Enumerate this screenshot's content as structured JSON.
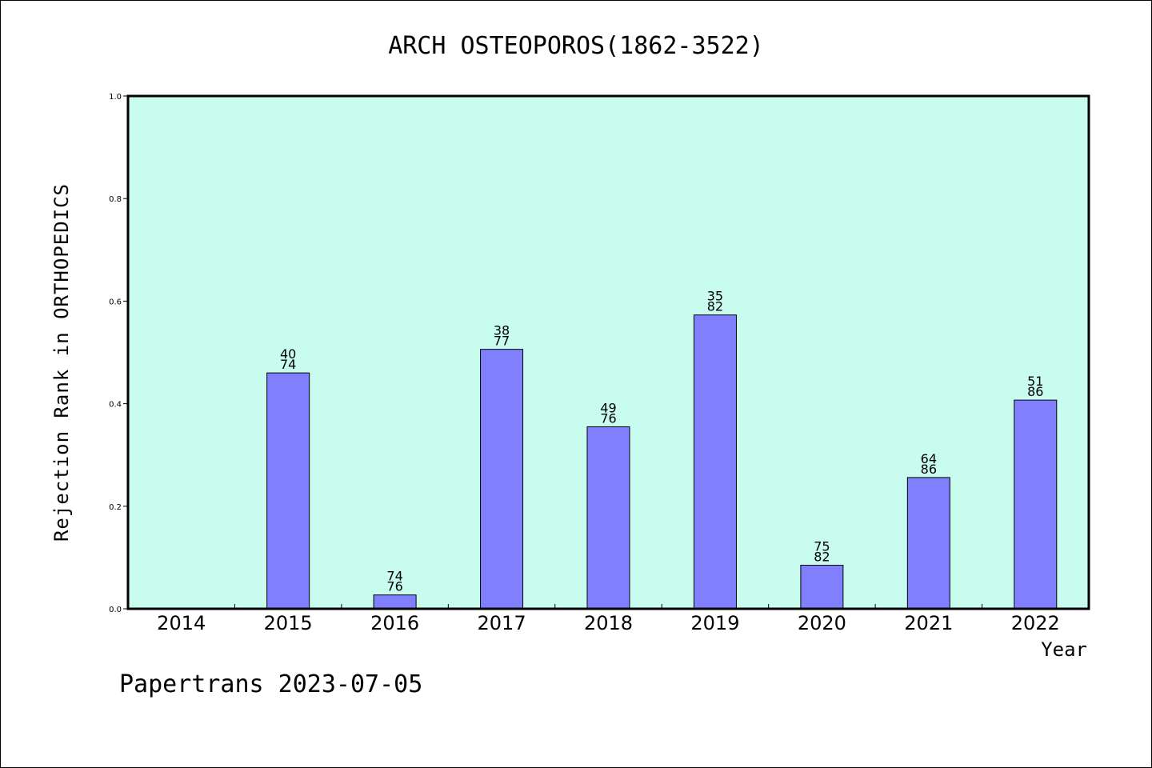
{
  "chart_data": {
    "type": "bar",
    "title": "ARCH OSTEOPOROS(1862-3522)",
    "xlabel": "Year",
    "ylabel": "Rejection Rank in ORTHOPEDICS",
    "ylim": [
      0,
      1
    ],
    "yticks": [
      "0.0",
      "0.2",
      "0.4",
      "0.6",
      "0.8",
      "1.0"
    ],
    "categories": [
      "2014",
      "2015",
      "2016",
      "2017",
      "2018",
      "2019",
      "2020",
      "2021",
      "2022"
    ],
    "values": [
      null,
      0.46,
      0.027,
      0.506,
      0.355,
      0.573,
      0.085,
      0.256,
      0.407
    ],
    "labels": [
      null,
      [
        "40",
        "74"
      ],
      [
        "74",
        "76"
      ],
      [
        "38",
        "77"
      ],
      [
        "49",
        "76"
      ],
      [
        "35",
        "82"
      ],
      [
        "75",
        "82"
      ],
      [
        "64",
        "86"
      ],
      [
        "51",
        "86"
      ]
    ],
    "colors": {
      "plot_background": "#c8fcee",
      "bar_fill": "#8080ff",
      "bar_stroke": "#000000"
    },
    "grid": false
  },
  "footer": "Papertrans 2023-07-05"
}
